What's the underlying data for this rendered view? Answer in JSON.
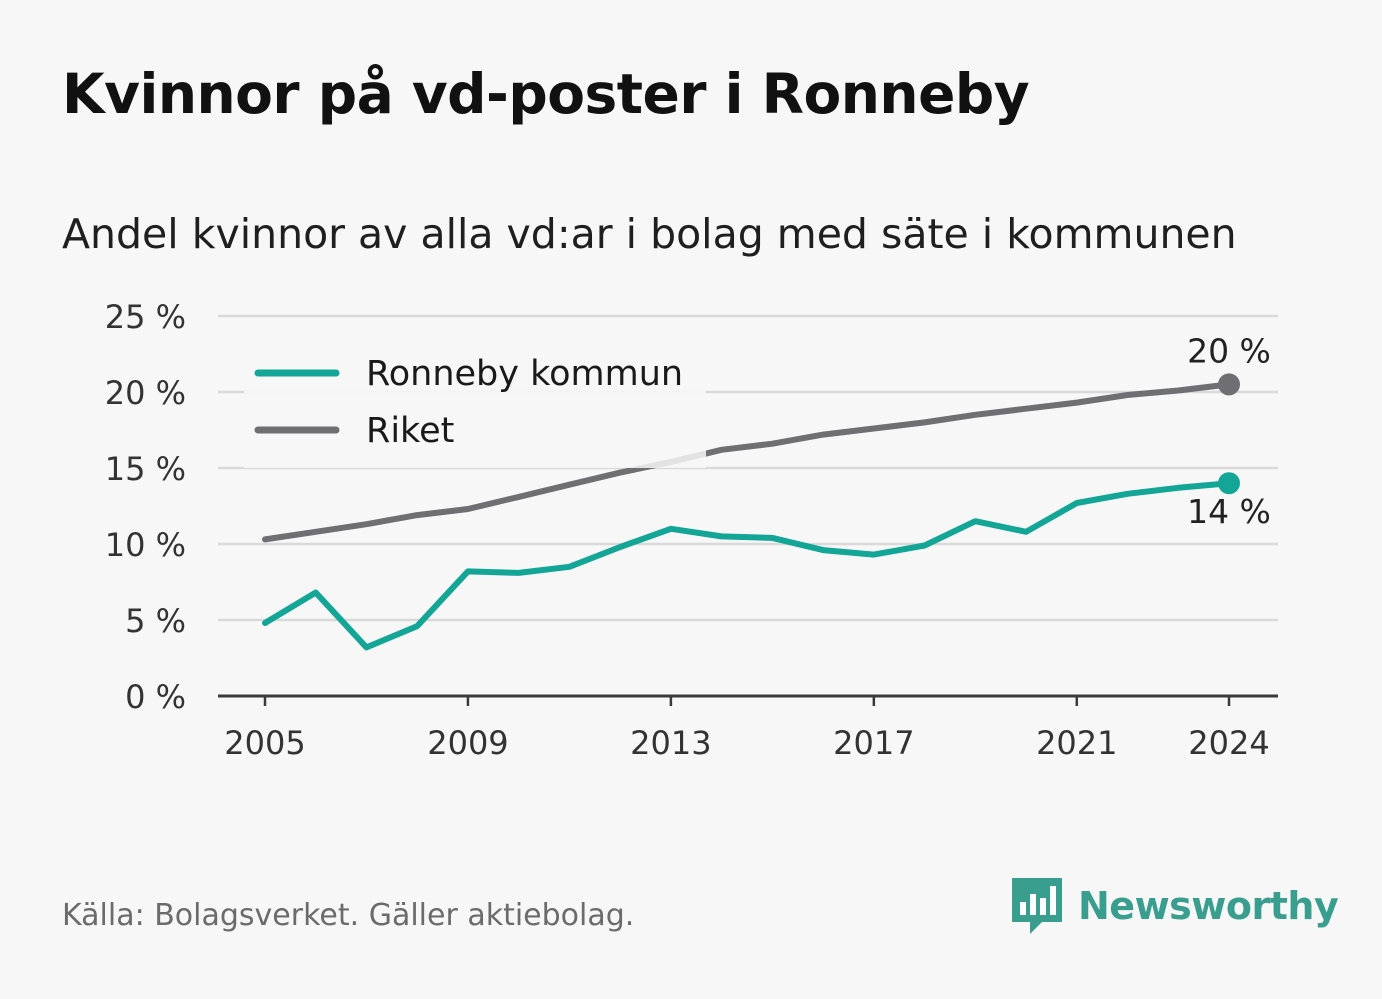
{
  "title": "Kvinnor på vd-poster i Ronneby",
  "subtitle": "Andel kvinnor av alla vd:ar i bolag med säte i kommunen",
  "source": "Källa: Bolagsverket. Gäller aktiebolag.",
  "brand": {
    "name": "Newsworthy",
    "icon": "newsworthy-logo-icon",
    "color": "#3a9e8f"
  },
  "chart_data": {
    "type": "line",
    "x": [
      2005,
      2006,
      2007,
      2008,
      2009,
      2010,
      2011,
      2012,
      2013,
      2014,
      2015,
      2016,
      2017,
      2018,
      2019,
      2020,
      2021,
      2022,
      2023,
      2024
    ],
    "series": [
      {
        "name": "Ronneby kommun",
        "color": "#13a596",
        "values": [
          4.8,
          6.8,
          3.2,
          4.6,
          8.2,
          8.1,
          8.5,
          9.8,
          11.0,
          10.5,
          10.4,
          9.6,
          9.3,
          9.9,
          11.5,
          10.8,
          12.7,
          13.3,
          13.7,
          14.0
        ]
      },
      {
        "name": "Riket",
        "color": "#6e6e73",
        "values": [
          10.3,
          10.8,
          11.3,
          11.9,
          12.3,
          13.1,
          13.9,
          14.7,
          15.4,
          16.2,
          16.6,
          17.2,
          17.6,
          18.0,
          18.5,
          18.9,
          19.3,
          19.8,
          20.1,
          20.5
        ]
      }
    ],
    "end_labels": {
      "Ronneby kommun": "14 %",
      "Riket": "20 %"
    },
    "ylim": [
      0,
      25
    ],
    "y_ticks": [
      0,
      5,
      10,
      15,
      20,
      25
    ],
    "y_tick_labels": [
      "0 %",
      "5 %",
      "10 %",
      "15 %",
      "20 %",
      "25 %"
    ],
    "x_ticks": [
      2005,
      2009,
      2013,
      2017,
      2021,
      2024
    ],
    "x_tick_labels": [
      "2005",
      "2009",
      "2013",
      "2017",
      "2021",
      "2024"
    ],
    "grid": true,
    "legend_position": "top-left",
    "xlabel": "",
    "ylabel": ""
  }
}
